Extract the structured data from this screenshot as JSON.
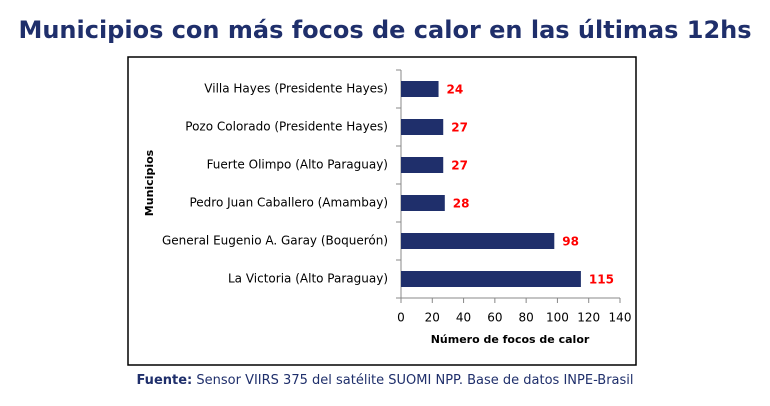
{
  "chart_data": {
    "type": "hbar",
    "title": "Municipios con más focos de calor en las últimas 12hs",
    "x_label": "Número de focos de calor",
    "y_label": "Municipios",
    "categories": [
      "Villa Hayes (Presidente Hayes)",
      "Pozo Colorado (Presidente Hayes)",
      "Fuerte Olimpo (Alto Paraguay)",
      "Pedro Juan Caballero (Amambay)",
      "General Eugenio A. Garay (Boquerón)",
      "La Victoria (Alto Paraguay)"
    ],
    "values": [
      24,
      27,
      27,
      28,
      98,
      115
    ],
    "color": "#1f2f6b",
    "label_color": "#ff0000",
    "xlim": [
      0,
      140
    ],
    "xticks": [
      0,
      20,
      40,
      60,
      80,
      100,
      120,
      140
    ],
    "source_label": "Fuente:",
    "source_text": "Sensor VIIRS 375 del satélite SUOMI NPP. Base de datos INPE-Brasil"
  }
}
